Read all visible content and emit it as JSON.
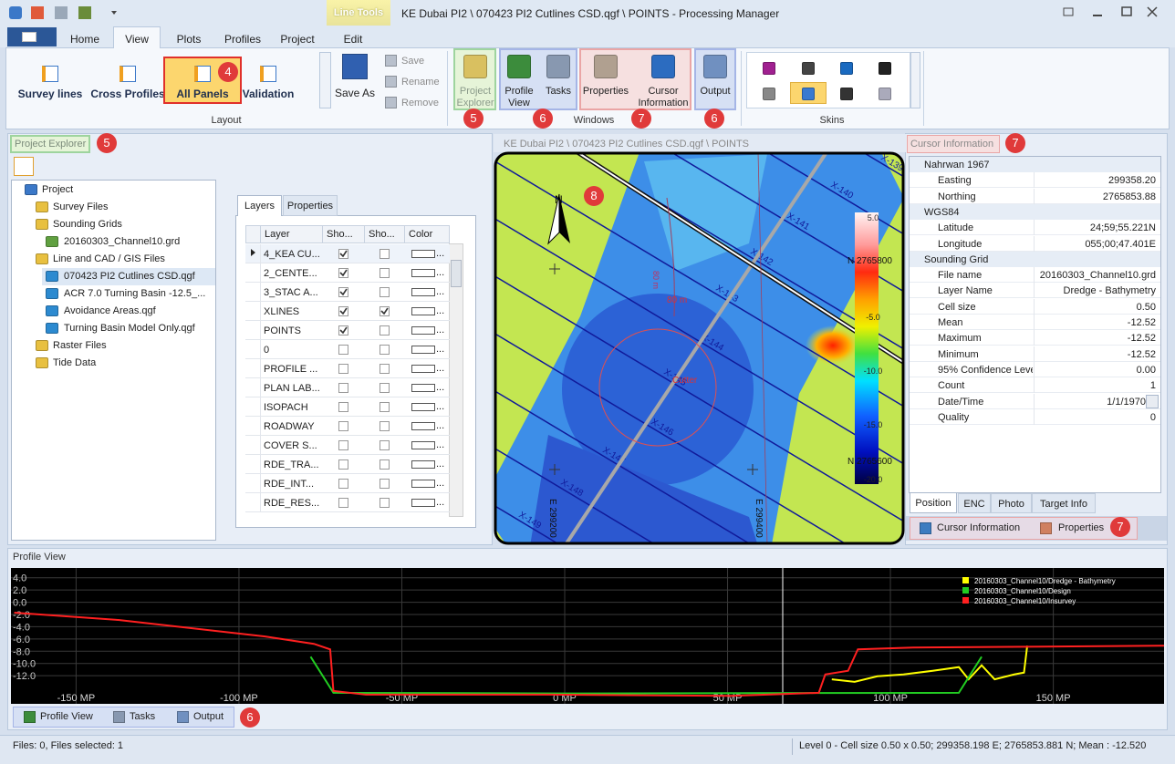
{
  "title_bar": {
    "context_tab": "Line Tools",
    "title": "KE Dubai PI2 \\ 070423 PI2 Cutlines CSD.qgf \\ POINTS - Processing Manager"
  },
  "ribbon_tabs": [
    "Home",
    "View",
    "Plots",
    "Profiles",
    "Project",
    "Edit"
  ],
  "ribbon": {
    "layout_group": {
      "label": "Layout",
      "buttons": [
        "Survey lines",
        "Cross Profiles",
        "All Panels",
        "Validation"
      ],
      "save_as": "Save As",
      "small_buttons": [
        "Save",
        "Rename",
        "Remove"
      ]
    },
    "windows_group": {
      "label": "Windows",
      "buttons": [
        "Project Explorer",
        "Profile View",
        "Tasks",
        "Properties",
        "Cursor Information",
        "Output"
      ]
    },
    "skins_group": {
      "label": "Skins"
    }
  },
  "callouts": [
    "4",
    "5",
    "6",
    "7",
    "6",
    "5",
    "8",
    "7",
    "7",
    "6"
  ],
  "project_explorer": {
    "title": "Project Explorer",
    "tree": [
      {
        "label": "Project",
        "level": 0
      },
      {
        "label": "Survey Files",
        "level": 1
      },
      {
        "label": "Sounding Grids",
        "level": 1
      },
      {
        "label": "20160303_Channel10.grd",
        "level": 2
      },
      {
        "label": "Line and CAD / GIS Files",
        "level": 1
      },
      {
        "label": "070423 PI2 Cutlines CSD.qgf",
        "level": 2,
        "selected": true
      },
      {
        "label": "ACR 7.0 Turning Basin -12.5_...",
        "level": 2
      },
      {
        "label": "Avoidance Areas.qgf",
        "level": 2
      },
      {
        "label": "Turning Basin Model Only.qgf",
        "level": 2
      },
      {
        "label": "Raster Files",
        "level": 1
      },
      {
        "label": "Tide Data",
        "level": 1
      }
    ]
  },
  "layers_panel": {
    "tabs": [
      "Layers",
      "Properties"
    ],
    "columns": [
      "Layer",
      "Sho...",
      "Sho...",
      "Color"
    ],
    "color_button": "...",
    "rows": [
      {
        "name": "4_KEA CU...",
        "show1": true,
        "show2": false
      },
      {
        "name": "2_CENTE...",
        "show1": true,
        "show2": false
      },
      {
        "name": "3_STAC A...",
        "show1": true,
        "show2": false
      },
      {
        "name": "XLINES",
        "show1": true,
        "show2": true
      },
      {
        "name": "POINTS",
        "show1": true,
        "show2": false
      },
      {
        "name": "0",
        "show1": false,
        "show2": false
      },
      {
        "name": "PROFILE ...",
        "show1": false,
        "show2": false
      },
      {
        "name": "PLAN LAB...",
        "show1": false,
        "show2": false
      },
      {
        "name": "ISOPACH",
        "show1": false,
        "show2": false
      },
      {
        "name": "ROADWAY",
        "show1": false,
        "show2": false
      },
      {
        "name": "COVER S...",
        "show1": false,
        "show2": false
      },
      {
        "name": "RDE_TRA...",
        "show1": false,
        "show2": false
      },
      {
        "name": "RDE_INT...",
        "show1": false,
        "show2": false
      },
      {
        "name": "RDE_RES...",
        "show1": false,
        "show2": false
      }
    ]
  },
  "map": {
    "title": "KE Dubai PI2 \\ 070423 PI2 Cutlines CSD.qgf \\ POINTS",
    "north": "N",
    "line_labels": [
      "X-139",
      "X-140",
      "X-141",
      "X-142",
      "X-143",
      "X-144",
      "X-145",
      "X-146",
      "X-147",
      "X-148",
      "X-149"
    ],
    "northings": [
      "N 2765800",
      "N 2765600"
    ],
    "eastings": [
      "E 299200",
      "E 299400"
    ],
    "colorbar_labels": [
      "5.0",
      "-5.0",
      "-10.0",
      "-15.0",
      "-20.0"
    ],
    "radius_label": "80 m",
    "cutter_label": "Cutter"
  },
  "cursor_information": {
    "title": "Cursor Information",
    "groups": [
      {
        "name": "Nahrwan 1967",
        "rows": [
          [
            "Easting",
            "299358.20"
          ],
          [
            "Northing",
            "2765853.88"
          ]
        ]
      },
      {
        "name": "WGS84",
        "rows": [
          [
            "Latitude",
            "24;59;55.221N"
          ],
          [
            "Longitude",
            "055;00;47.401E"
          ]
        ]
      },
      {
        "name": "Sounding Grid",
        "rows": [
          [
            "File name",
            "20160303_Channel10.grd"
          ],
          [
            "Layer Name",
            "Dredge - Bathymetry"
          ],
          [
            "Cell size",
            "0.50"
          ],
          [
            "Mean",
            "-12.52"
          ],
          [
            "Maximum",
            "-12.52"
          ],
          [
            "Minimum",
            "-12.52"
          ],
          [
            "95% Confidence Leve",
            "0.00"
          ],
          [
            "Count",
            "1"
          ],
          [
            "Date/Time",
            "1/1/1970"
          ],
          [
            "Quality",
            "0"
          ]
        ]
      }
    ],
    "tabs": [
      "Position",
      "ENC",
      "Photo",
      "Target Info"
    ],
    "bottom_tabs": [
      "Cursor Information",
      "Properties"
    ]
  },
  "profile_view": {
    "title": "Profile View",
    "chart": {
      "type": "line",
      "xlim": [
        -170,
        184
      ],
      "ylim": [
        -16.6,
        5.6
      ],
      "xticks": [
        {
          "value": -150,
          "label": "-150 MP"
        },
        {
          "value": -100,
          "label": "-100 MP"
        },
        {
          "value": -50,
          "label": "-50 MP"
        },
        {
          "value": 0,
          "label": "0 MP"
        },
        {
          "value": 50,
          "label": "50 MP"
        },
        {
          "value": 100,
          "label": "100 MP"
        },
        {
          "value": 150,
          "label": "150 MP"
        }
      ],
      "yticks": [
        {
          "value": 4,
          "label": "4.0"
        },
        {
          "value": 2,
          "label": "2.0"
        },
        {
          "value": 0,
          "label": "0.0"
        },
        {
          "value": -2,
          "label": "-2.0"
        },
        {
          "value": -4,
          "label": "-4.0"
        },
        {
          "value": -6,
          "label": "-6.0"
        },
        {
          "value": -8,
          "label": "-8.0"
        },
        {
          "value": -10,
          "label": "-10.0"
        },
        {
          "value": -12,
          "label": "-12.0"
        }
      ],
      "grid": true,
      "series": [
        {
          "name": "20160303_Channel10/Dredge - Bathymetry",
          "color": "#ffff00",
          "x": [
            82,
            89,
            96,
            104,
            113,
            121,
            124,
            128,
            132,
            138,
            141,
            142
          ],
          "values": [
            -12.6,
            -13.0,
            -12.1,
            -11.8,
            -11.2,
            -10.6,
            -12.6,
            -10.3,
            -12.6,
            -11.8,
            -11.5,
            -7.1
          ]
        },
        {
          "name": "20160303_Channel10/Design",
          "color": "#22cc22",
          "x": [
            -78,
            -71,
            0,
            121,
            128
          ],
          "values": [
            -8.9,
            -14.8,
            -14.9,
            -14.8,
            -8.9
          ]
        },
        {
          "name": "20160303_Channel10/Insurvey",
          "color": "#ff2020",
          "x": [
            -169,
            -137,
            -92,
            -77,
            -72,
            -71,
            -61,
            -5,
            51,
            78,
            80,
            87,
            90,
            107,
            184
          ],
          "values": [
            -1.7,
            -2.9,
            -5.6,
            -6.8,
            -7.7,
            -14.5,
            -15.1,
            -15.1,
            -15.3,
            -14.8,
            -11.8,
            -11.2,
            -7.7,
            -7.4,
            -7.1
          ]
        }
      ]
    },
    "bottom_tabs": [
      "Profile View",
      "Tasks",
      "Output"
    ]
  },
  "status_bar": {
    "left": "Files: 0, Files selected: 1",
    "right": "Level 0 - Cell size 0.50 x 0.50; 299358.198 E; 2765853.881 N; Mean : -12.520"
  }
}
